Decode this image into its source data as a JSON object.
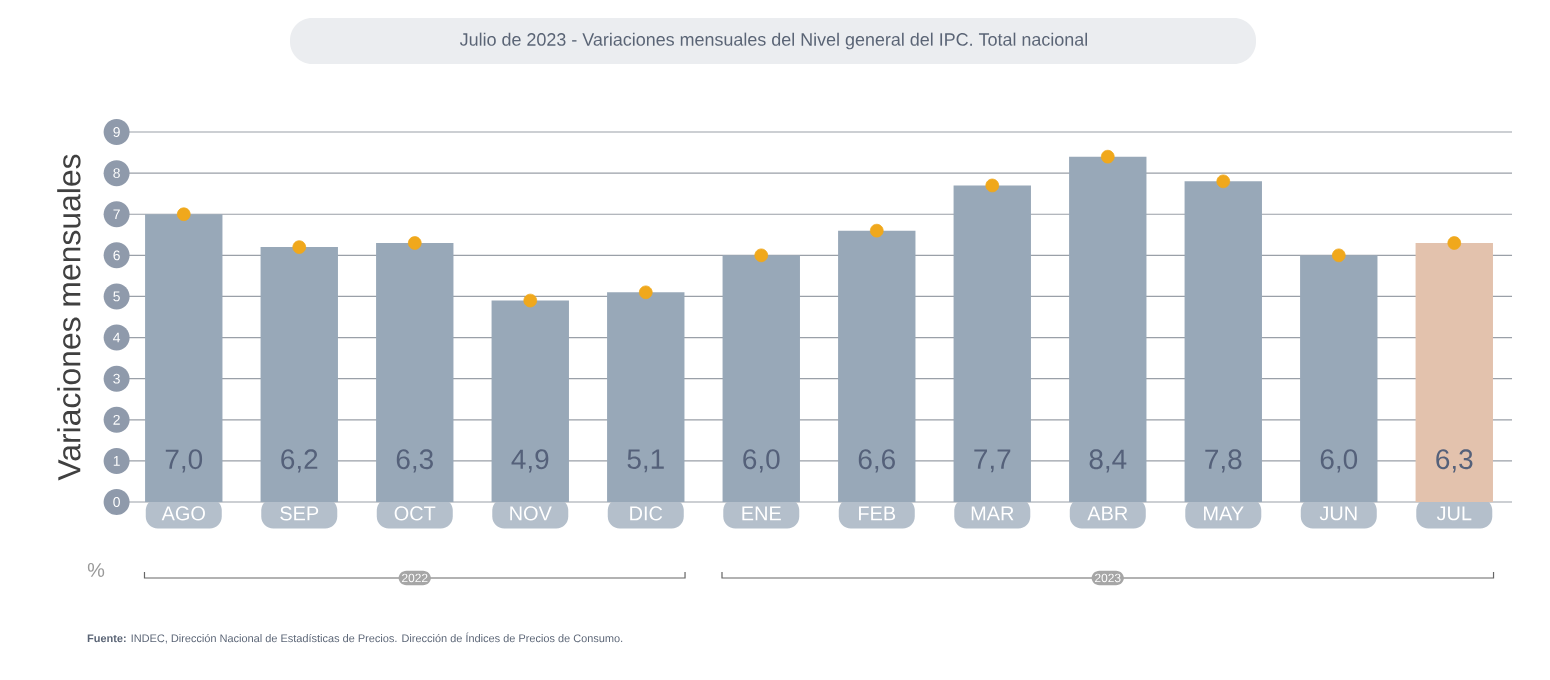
{
  "chart_data": {
    "type": "bar",
    "title": "Julio de 2023 - Variaciones mensuales del Nivel general del IPC. Total nacional",
    "ylabel": "Variaciones mensuales",
    "categories": [
      "AGO",
      "SEP",
      "OCT",
      "NOV",
      "DIC",
      "ENE",
      "FEB",
      "MAR",
      "ABR",
      "MAY",
      "JUN",
      "JUL"
    ],
    "series": [
      {
        "values": [
          7.0,
          6.2,
          6.3,
          4.9,
          5.1,
          6.0,
          6.6,
          7.7,
          8.4,
          7.8,
          6.0,
          6.3
        ],
        "value_labels": [
          "7,0",
          "6,2",
          "6,3",
          "4,9",
          "5,1",
          "6,0",
          "6,6",
          "7,7",
          "8,4",
          "7,8",
          "6,0",
          "6,3"
        ],
        "colors": [
          "#98a8b8",
          "#98a8b8",
          "#98a8b8",
          "#98a8b8",
          "#98a8b8",
          "#98a8b8",
          "#98a8b8",
          "#98a8b8",
          "#98a8b8",
          "#98a8b8",
          "#98a8b8",
          "#e3c2ad"
        ]
      },
      {
        "type": "scatter",
        "color": "#f0a81c",
        "x": [
          "AGO",
          "SEP",
          "OCT",
          "NOV",
          "DIC",
          "ENE",
          "FEB",
          "MAR",
          "ABR",
          "MAY",
          "JUN",
          "JUL"
        ],
        "values": [
          7.0,
          6.2,
          6.3,
          4.9,
          5.1,
          6.0,
          6.6,
          7.7,
          8.4,
          7.8,
          6.0,
          6.3
        ]
      }
    ],
    "ylim": [
      0,
      9
    ],
    "yticks": [
      0,
      1,
      2,
      3,
      4,
      5,
      6,
      7,
      8,
      9
    ],
    "grid": "y",
    "marker": "circle",
    "annotations": [
      "%",
      "2022",
      "2023",
      "**Fuente:** INDEC, Dirección Nacional de Estadísticas de Precios. Dirección de Índices de Precios de Consumo."
    ]
  }
}
